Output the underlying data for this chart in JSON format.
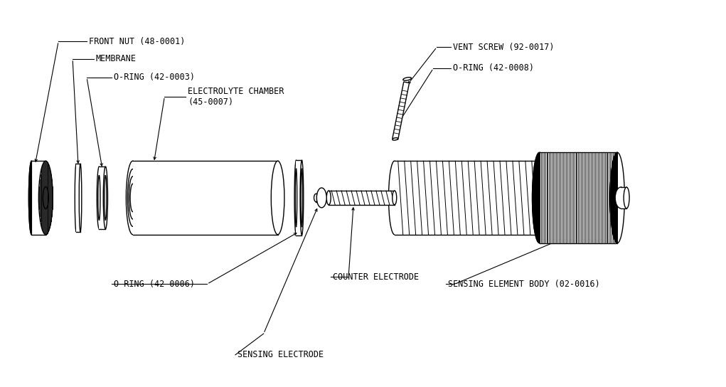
{
  "bg_color": "#ffffff",
  "line_color": "#000000",
  "labels": {
    "front_nut": "FRONT NUT (48-0001)",
    "membrane": "MEMBRANE",
    "oring_3": "O-RING (42-0003)",
    "electrolyte": "ELECTROLYTE CHAMBER\n(45-0007)",
    "oring_6": "O-RING (42-0006)",
    "sensing_electrode": "SENSING ELECTRODE",
    "counter_electrode": "COUNTER ELECTRODE",
    "sensing_body": "SENSING ELEMENT BODY (02-0016)",
    "vent_screw": "VENT SCREW (92-0017)",
    "oring_8": "O-RING (42-0008)"
  },
  "figsize": [
    10.21,
    5.44
  ],
  "dpi": 100
}
